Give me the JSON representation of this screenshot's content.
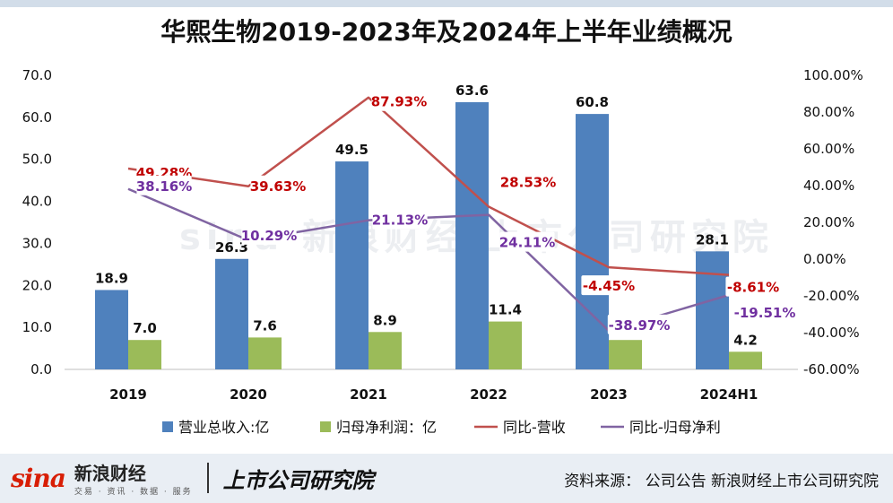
{
  "title": "华熙生物2019-2023年及2024年上半年业绩概况",
  "brand": {
    "logo": "sina",
    "name": "新浪财经",
    "sub": "交易 · 资讯 · 数据 · 服务",
    "institute": "上市公司研究院"
  },
  "watermark": "sina 新浪财经 上市公司研究院",
  "source": "资料来源：  公司公告  新浪财经上市公司研究院",
  "chart_data": {
    "type": "bar",
    "categories": [
      "2019",
      "2020",
      "2021",
      "2022",
      "2023",
      "2024H1"
    ],
    "y_left": {
      "ticks": [
        "0.0",
        "10.0",
        "20.0",
        "30.0",
        "40.0",
        "50.0",
        "60.0",
        "70.0"
      ],
      "ylim": [
        0,
        70
      ]
    },
    "y_right": {
      "ticks": [
        "-60.00%",
        "-40.00%",
        "-20.00%",
        "0.00%",
        "20.00%",
        "40.00%",
        "60.00%",
        "80.00%",
        "100.00%"
      ],
      "ylim": [
        -60,
        100
      ]
    },
    "bar_series": [
      {
        "name": "营业总收入:亿",
        "color": "#4f81bd",
        "values": [
          18.9,
          26.3,
          49.5,
          63.6,
          60.8,
          28.1
        ],
        "labels": [
          "18.9",
          "26.3",
          "49.5",
          "63.6",
          "60.8",
          "28.1"
        ]
      },
      {
        "name": "归母净利润：亿",
        "color": "#9bbb59",
        "values": [
          7.0,
          7.6,
          8.9,
          11.4,
          7.0,
          4.2
        ],
        "labels": [
          "7.0",
          "7.6",
          "8.9",
          "11.4",
          "7.0",
          "4.2"
        ]
      }
    ],
    "line_series": [
      {
        "name": "同比-营收",
        "color": "#c0504d",
        "label_color": "#c00000",
        "values": [
          49.28,
          39.63,
          87.93,
          28.53,
          -4.45,
          -8.61
        ],
        "labels": [
          "49.28%",
          "39.63%",
          "87.93%",
          "28.53%",
          "-4.45%",
          "-8.61%"
        ]
      },
      {
        "name": "同比-归母净利",
        "color": "#8064a2",
        "label_color": "#7030a0",
        "values": [
          38.16,
          10.29,
          21.13,
          24.11,
          -38.97,
          -19.51
        ],
        "labels": [
          "38.16%",
          "10.29%",
          "21.13%",
          "24.11%",
          "-38.97%",
          "-19.51%"
        ]
      }
    ],
    "legend": "bottom",
    "grid": false
  }
}
